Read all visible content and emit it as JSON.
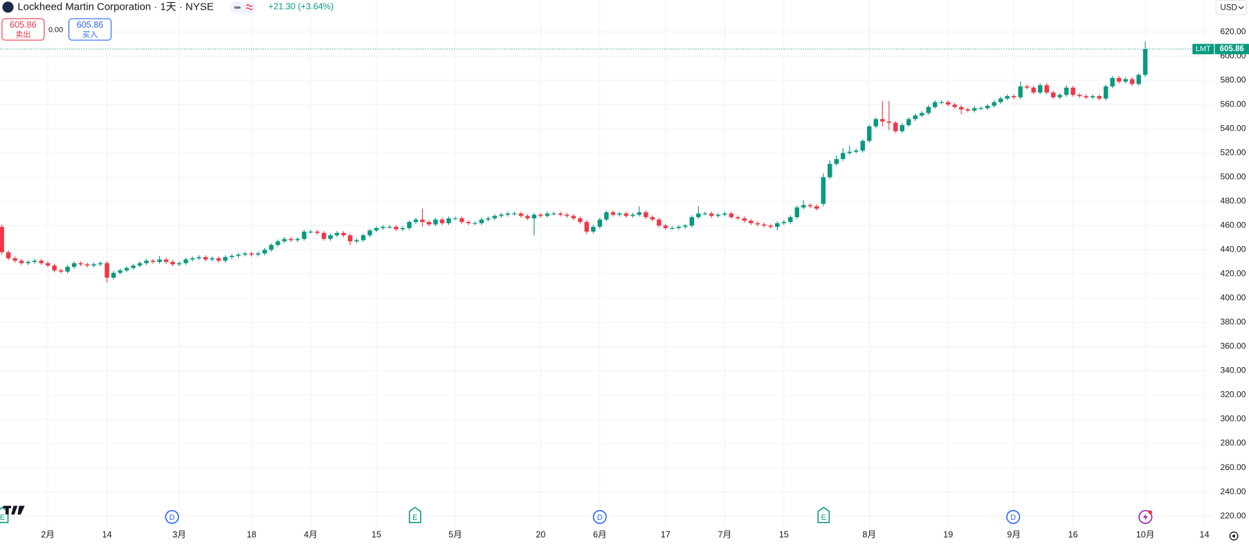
{
  "header": {
    "symbol_title": "Lockheed Martin Corporation · 1天 · NYSE",
    "change": "+21.30 (+3.64%)",
    "sell_price": "605.86",
    "sell_label": "卖出",
    "spread": "0.00",
    "buy_price": "605.86",
    "buy_label": "买入",
    "currency": "USD"
  },
  "chart_data": {
    "type": "candlestick",
    "symbol_tag": "LMT",
    "up_color": "#089981",
    "down_color": "#f23645",
    "grid": true,
    "events": [
      "E",
      "D",
      "E",
      "D",
      "E",
      "D"
    ],
    "ylim": [
      211.4,
      646.4
    ],
    "yticks": [
      {
        "value": 220,
        "label": "220.00"
      },
      {
        "value": 240,
        "label": "240.00"
      },
      {
        "value": 260,
        "label": "260.00"
      },
      {
        "value": 280,
        "label": "280.00"
      },
      {
        "value": 300,
        "label": "300.00"
      },
      {
        "value": 320,
        "label": "320.00"
      },
      {
        "value": 340,
        "label": "340.00"
      },
      {
        "value": 360,
        "label": "360.00"
      },
      {
        "value": 380,
        "label": "380.00"
      },
      {
        "value": 400,
        "label": "400.00"
      },
      {
        "value": 420,
        "label": "420.00"
      },
      {
        "value": 440,
        "label": "440.00"
      },
      {
        "value": 460,
        "label": "460.00"
      },
      {
        "value": 480,
        "label": "480.00"
      },
      {
        "value": 500,
        "label": "500.00"
      },
      {
        "value": 520,
        "label": "520.00"
      },
      {
        "value": 540,
        "label": "540.00"
      },
      {
        "value": 560,
        "label": "560.00"
      },
      {
        "value": 580,
        "label": "580.00"
      },
      {
        "value": 600,
        "label": "600.00"
      },
      {
        "value": 620,
        "label": "620.00"
      }
    ],
    "categories": [
      null,
      null,
      null,
      null,
      null,
      null,
      null,
      "2月",
      null,
      null,
      null,
      null,
      null,
      null,
      null,
      null,
      "14",
      null,
      null,
      null,
      null,
      null,
      null,
      null,
      null,
      null,
      null,
      "3月",
      null,
      null,
      null,
      null,
      null,
      null,
      null,
      null,
      null,
      null,
      "18",
      null,
      null,
      null,
      null,
      null,
      null,
      null,
      null,
      "4月",
      null,
      null,
      null,
      null,
      null,
      null,
      null,
      null,
      null,
      "15",
      null,
      null,
      null,
      null,
      null,
      null,
      null,
      null,
      null,
      null,
      null,
      "5月",
      null,
      null,
      null,
      null,
      null,
      null,
      null,
      null,
      null,
      null,
      null,
      null,
      "20",
      null,
      null,
      null,
      null,
      null,
      null,
      null,
      null,
      "6月",
      null,
      null,
      null,
      null,
      null,
      null,
      null,
      null,
      null,
      "17",
      null,
      null,
      null,
      null,
      null,
      null,
      null,
      null,
      "7月",
      null,
      null,
      null,
      null,
      null,
      null,
      null,
      null,
      "15",
      null,
      null,
      null,
      null,
      null,
      null,
      null,
      null,
      null,
      null,
      null,
      null,
      "8月",
      null,
      null,
      null,
      null,
      null,
      null,
      null,
      null,
      null,
      null,
      null,
      "19",
      null,
      null,
      null,
      null,
      null,
      null,
      null,
      null,
      null,
      "9月",
      null,
      null,
      null,
      null,
      null,
      null,
      null,
      null,
      "16",
      null,
      null,
      null,
      null,
      null,
      null,
      null,
      null,
      null,
      null,
      "10月",
      null,
      null,
      null,
      null,
      null,
      null,
      null,
      null,
      "14"
    ],
    "open": [
      459,
      438,
      433,
      431,
      429,
      430,
      431,
      429,
      427,
      423,
      422,
      426,
      429,
      428,
      427,
      428,
      429,
      417,
      421,
      423,
      425,
      427,
      429,
      431,
      430,
      432,
      430,
      428,
      429,
      432,
      433,
      434,
      432,
      433,
      431,
      434,
      435,
      436,
      437,
      436,
      437,
      440,
      444,
      447,
      449,
      448,
      449,
      455,
      455,
      454,
      449,
      452,
      454,
      452,
      447,
      448,
      452,
      456,
      458,
      459,
      459,
      457,
      458,
      463,
      465,
      463,
      461,
      465,
      462,
      466,
      466,
      463,
      462,
      462,
      465,
      466,
      468,
      469,
      470,
      470,
      468,
      466,
      469,
      468,
      470,
      470,
      469,
      468,
      466,
      463,
      455,
      459,
      465,
      471,
      469,
      470,
      468,
      469,
      471,
      467,
      465,
      460,
      458,
      458,
      459,
      460,
      467,
      470,
      470,
      468,
      469,
      470,
      467,
      466,
      464,
      462,
      461,
      460,
      459,
      462,
      463,
      467,
      475,
      477,
      476,
      478,
      500,
      511,
      515,
      520,
      521,
      522,
      530,
      542,
      548,
      546,
      545,
      538,
      543,
      548,
      551,
      553,
      558,
      562,
      562,
      560,
      558,
      556,
      555,
      557,
      557,
      559,
      562,
      565,
      567,
      566,
      575,
      574,
      570,
      576,
      570,
      566,
      568,
      574,
      568,
      567,
      566,
      567,
      565,
      575,
      582,
      579,
      581,
      577,
      584.56,
      null,
      null,
      null,
      null,
      null,
      null,
      null,
      null,
      null
    ],
    "high": [
      461,
      439.5,
      434.5,
      432.5,
      431.5,
      432.5,
      432.5,
      430.5,
      428.5,
      424.5,
      427.5,
      430.5,
      430.5,
      429.5,
      429.5,
      430.5,
      430.5,
      422.5,
      424.5,
      426.5,
      428.5,
      430.5,
      432.5,
      432.5,
      435,
      433.5,
      431.5,
      430.5,
      433.5,
      434.5,
      435.5,
      435.5,
      434.5,
      434.5,
      435.5,
      436.5,
      437.5,
      438.5,
      438.5,
      438.5,
      441.5,
      445.5,
      448.5,
      450.5,
      450.5,
      450.5,
      456.5,
      456.5,
      456.5,
      455.5,
      453.5,
      455.5,
      455.5,
      453.5,
      449.5,
      453.5,
      457.5,
      459.5,
      460.5,
      460.5,
      460.5,
      459.5,
      464.5,
      466.5,
      474,
      464.5,
      466.5,
      466.5,
      467.5,
      467.5,
      467.5,
      464.5,
      463.5,
      466.5,
      467.5,
      469.5,
      470.5,
      471.5,
      471.5,
      471.5,
      469.5,
      470.5,
      470.5,
      471.5,
      471.5,
      471.5,
      470.5,
      469.5,
      467.5,
      464.5,
      460.5,
      466.5,
      472.5,
      472.5,
      471.5,
      471.5,
      470.5,
      476,
      472.5,
      468.5,
      466.5,
      461.5,
      459.5,
      460.5,
      461.5,
      468.5,
      476,
      471.5,
      471.5,
      470.5,
      471.5,
      471.5,
      468.5,
      467.5,
      465.5,
      463.5,
      462.5,
      461.5,
      463.5,
      464.5,
      468.5,
      476.5,
      481,
      478.5,
      477.5,
      503,
      514,
      518,
      524,
      526,
      523.5,
      531.5,
      543.5,
      549.5,
      563,
      563,
      546.5,
      544.5,
      549.5,
      552.5,
      554.5,
      559.5,
      563.5,
      563.5,
      563.5,
      561.5,
      559.5,
      557.5,
      558.5,
      558.5,
      560.5,
      563.5,
      566.5,
      568.5,
      568.5,
      579,
      576.5,
      575.5,
      577.5,
      578,
      571.5,
      569.5,
      576,
      575.5,
      569.5,
      568.5,
      568.5,
      568.5,
      576.5,
      583.5,
      583.5,
      582.5,
      582.5,
      586,
      612,
      null,
      null,
      null,
      null,
      null,
      null,
      null,
      null,
      null
    ],
    "low": [
      436,
      431.5,
      429.5,
      427.5,
      427.5,
      428.5,
      427.5,
      425.5,
      421.5,
      420.5,
      420.5,
      424.5,
      426.5,
      425.5,
      425.5,
      426.5,
      413,
      415.5,
      419.5,
      421.5,
      423.5,
      425.5,
      427.5,
      428.5,
      428.5,
      428.5,
      426.5,
      426.5,
      427.5,
      430.5,
      431.5,
      430.5,
      430.5,
      429.5,
      429.5,
      432.5,
      433.5,
      434.5,
      434.5,
      434.5,
      435.5,
      438.5,
      442.5,
      445.5,
      446.5,
      446.5,
      447.5,
      453.5,
      452.5,
      447.5,
      447.5,
      450.5,
      450.5,
      444,
      445.5,
      446.5,
      450.5,
      454.5,
      456.5,
      457.5,
      455.5,
      455.5,
      456.5,
      461.5,
      459,
      459.5,
      459.5,
      460.5,
      460.5,
      464.5,
      461.5,
      460.5,
      460.5,
      460.5,
      463.5,
      464.5,
      466.5,
      467.5,
      468.5,
      466.5,
      464.5,
      452,
      466.5,
      466.5,
      468.5,
      467.5,
      466.5,
      464.5,
      461.5,
      453,
      453.5,
      457.5,
      463.5,
      467.5,
      467.5,
      466.5,
      466.5,
      467.5,
      465.5,
      463.5,
      458.5,
      456.5,
      456.5,
      456.5,
      457.5,
      458.5,
      465.5,
      468.5,
      466.5,
      466.5,
      467.5,
      465.5,
      464.5,
      462.5,
      460.5,
      459.5,
      458.5,
      457.5,
      456,
      460.5,
      461.5,
      465.5,
      473.5,
      474.5,
      472.5,
      476,
      498.5,
      509.5,
      513.5,
      518.5,
      519.5,
      520.5,
      528.5,
      540.5,
      542,
      539,
      536.5,
      536.5,
      541.5,
      546.5,
      549.5,
      551.5,
      556.5,
      560.5,
      558.5,
      556.5,
      552,
      553.5,
      553.5,
      555.5,
      555.5,
      557.5,
      560.5,
      563.5,
      564.5,
      564.5,
      572.5,
      568.5,
      568.5,
      568.5,
      564.5,
      564.5,
      566.5,
      566.5,
      565.5,
      564.5,
      564.5,
      563.5,
      563.5,
      573.5,
      577.5,
      577.5,
      575.5,
      575.5,
      583,
      null,
      null,
      null,
      null,
      null,
      null,
      null,
      null,
      null
    ],
    "close": [
      438,
      433,
      431,
      429,
      430,
      431,
      429,
      427,
      423,
      422,
      426,
      429,
      428,
      427,
      428,
      429,
      417,
      421,
      423,
      425,
      427,
      429,
      431,
      430,
      432,
      430,
      428,
      429,
      432,
      433,
      434,
      432,
      433,
      431,
      434,
      435,
      436,
      437,
      436,
      437,
      440,
      444,
      447,
      449,
      448,
      449,
      455,
      455,
      454,
      449,
      452,
      454,
      452,
      447,
      448,
      452,
      456,
      458,
      459,
      459,
      457,
      458,
      463,
      465,
      463,
      461,
      465,
      462,
      466,
      466,
      463,
      462,
      462,
      465,
      466,
      468,
      469,
      470,
      470,
      468,
      466,
      469,
      468,
      470,
      470,
      469,
      468,
      466,
      463,
      455,
      459,
      465,
      471,
      469,
      470,
      468,
      469,
      471,
      467,
      465,
      460,
      458,
      458,
      459,
      460,
      467,
      470,
      470,
      468,
      469,
      470,
      467,
      466,
      464,
      462,
      461,
      460,
      459,
      462,
      463,
      467,
      475,
      477,
      476,
      474,
      500,
      511,
      515,
      520,
      521,
      522,
      530,
      542,
      548,
      546,
      545,
      538,
      543,
      548,
      551,
      553,
      558,
      562,
      562,
      560,
      558,
      556,
      555,
      557,
      557,
      559,
      562,
      565,
      567,
      566,
      575,
      574,
      570,
      576,
      570,
      566,
      568,
      574,
      568,
      567,
      566,
      567,
      565,
      575,
      582,
      579,
      581,
      577,
      584.56,
      605.86,
      null,
      null,
      null,
      null,
      null,
      null,
      null,
      null,
      null
    ]
  }
}
